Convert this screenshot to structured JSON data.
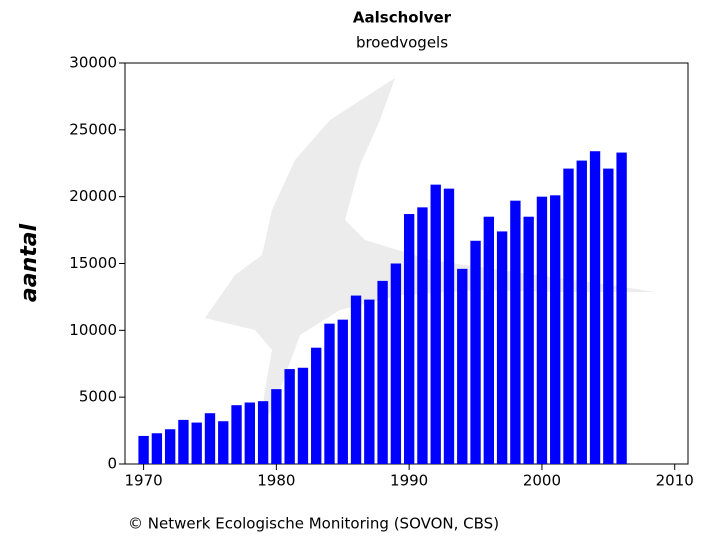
{
  "chart_data": {
    "type": "bar",
    "title": "Aalscholver",
    "subtitle": "broedvogels",
    "y_label": "aantal",
    "footer": "© Netwerk Ecologische Monitoring (SOVON, CBS)",
    "x": [
      1970,
      1971,
      1972,
      1973,
      1974,
      1975,
      1976,
      1977,
      1978,
      1979,
      1980,
      1981,
      1982,
      1983,
      1984,
      1985,
      1986,
      1987,
      1988,
      1989,
      1990,
      1991,
      1992,
      1993,
      1994,
      1995,
      1996,
      1997,
      1998,
      1999,
      2000,
      2001,
      2002,
      2003,
      2004,
      2005,
      2006
    ],
    "values": [
      2100,
      2300,
      2600,
      3300,
      3100,
      3800,
      3200,
      4400,
      4600,
      4700,
      5600,
      7100,
      7200,
      8700,
      10500,
      10800,
      12600,
      12300,
      13700,
      15000,
      18700,
      19200,
      20900,
      20600,
      14600,
      16700,
      18500,
      17400,
      19700,
      18500,
      20000,
      20100,
      22100,
      22700,
      23400,
      22100,
      23300
    ],
    "color": "#0000ff",
    "xlim": [
      1968.6,
      2011
    ],
    "xticks": [
      1970,
      1980,
      1990,
      2000,
      2010
    ],
    "ylim": [
      0,
      30000
    ],
    "yticks": [
      0,
      5000,
      10000,
      15000,
      20000,
      25000,
      30000
    ]
  }
}
